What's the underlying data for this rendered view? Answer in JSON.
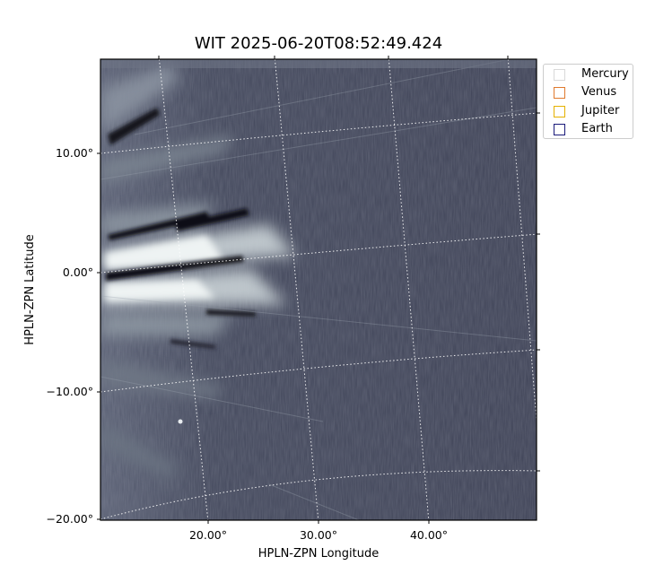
{
  "chart_data": {
    "type": "heatmap",
    "title": "WIT 2025-06-20T08:52:49.424",
    "xlabel": "HPLN-ZPN Longitude",
    "ylabel": "HPLN-ZPN Latitude",
    "x_ticks": [
      "20.00°",
      "30.00°",
      "40.00°"
    ],
    "y_ticks": [
      "10.00°",
      "0.00°",
      "−10.00°",
      "−20.00°"
    ],
    "xlim": [
      10.5,
      50
    ],
    "ylim": [
      -20,
      17.5
    ],
    "grid": true,
    "colormap": "bone",
    "legend_position": "outside-top-right",
    "legend": [
      {
        "name": "Mercury",
        "color": "#d9d9d9"
      },
      {
        "name": "Venus",
        "color": "#e07a2e"
      },
      {
        "name": "Jupiter",
        "color": "#e5b100"
      },
      {
        "name": "Earth",
        "color": "#1a1a7a"
      }
    ]
  }
}
